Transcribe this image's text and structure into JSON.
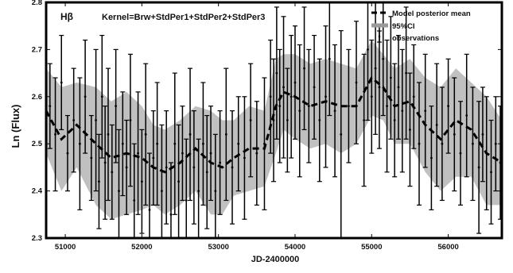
{
  "chart_data": {
    "type": "line",
    "panel_label": "Hβ",
    "kernel_label": "Kernel=Brw+StdPer1+StdPer2+StdPer3",
    "xlabel": "JD-2400000",
    "ylabel": "Ln (Flux)",
    "xlim": [
      50750,
      56700
    ],
    "ylim": [
      2.3,
      2.8
    ],
    "x_ticks": [
      51000,
      52000,
      53000,
      54000,
      55000,
      56000
    ],
    "y_ticks": [
      2.3,
      2.4,
      2.5,
      2.6,
      2.7,
      2.8
    ],
    "legend": {
      "position": "top-right",
      "entries": [
        "Model posterior mean",
        "95%CI",
        "observations"
      ]
    },
    "series": [
      {
        "name": "Model posterior mean",
        "style": "dashed",
        "color": "#000000",
        "x": [
          50750,
          50950,
          51150,
          51400,
          51600,
          51800,
          52000,
          52150,
          52300,
          52500,
          52700,
          52900,
          53050,
          53200,
          53400,
          53600,
          53750,
          53850,
          54000,
          54200,
          54400,
          54600,
          54800,
          55000,
          55150,
          55300,
          55500,
          55700,
          55900,
          56100,
          56300,
          56500,
          56700
        ],
        "y": [
          2.57,
          2.51,
          2.54,
          2.5,
          2.47,
          2.48,
          2.47,
          2.45,
          2.44,
          2.46,
          2.49,
          2.46,
          2.45,
          2.47,
          2.49,
          2.49,
          2.58,
          2.61,
          2.6,
          2.58,
          2.59,
          2.58,
          2.58,
          2.64,
          2.62,
          2.58,
          2.59,
          2.54,
          2.51,
          2.55,
          2.53,
          2.48,
          2.46
        ]
      },
      {
        "name": "95%CI",
        "type": "band",
        "color": "#c0c0c0",
        "x": [
          50750,
          50950,
          51150,
          51400,
          51600,
          51800,
          52000,
          52150,
          52300,
          52500,
          52700,
          52900,
          53050,
          53200,
          53400,
          53600,
          53750,
          53850,
          54000,
          54200,
          54400,
          54600,
          54800,
          55000,
          55150,
          55300,
          55500,
          55700,
          55900,
          56100,
          56300,
          56500,
          56700
        ],
        "lower": [
          2.48,
          2.4,
          2.45,
          2.37,
          2.34,
          2.35,
          2.36,
          2.37,
          2.35,
          2.37,
          2.4,
          2.35,
          2.35,
          2.39,
          2.4,
          2.41,
          2.48,
          2.53,
          2.51,
          2.49,
          2.5,
          2.48,
          2.5,
          2.56,
          2.55,
          2.5,
          2.5,
          2.44,
          2.4,
          2.43,
          2.43,
          2.37,
          2.37
        ],
        "upper": [
          2.66,
          2.62,
          2.63,
          2.62,
          2.59,
          2.61,
          2.58,
          2.54,
          2.53,
          2.55,
          2.58,
          2.57,
          2.55,
          2.55,
          2.58,
          2.57,
          2.68,
          2.69,
          2.69,
          2.67,
          2.68,
          2.67,
          2.66,
          2.72,
          2.69,
          2.66,
          2.68,
          2.64,
          2.62,
          2.66,
          2.63,
          2.6,
          2.55
        ]
      },
      {
        "name": "observations",
        "type": "errorbar",
        "color": "#000000",
        "x": [
          50800,
          50870,
          50950,
          51030,
          51110,
          51190,
          51260,
          51340,
          51400,
          51440,
          51480,
          51520,
          51560,
          51610,
          51660,
          51700,
          51750,
          51800,
          51850,
          51900,
          51950,
          52000,
          52050,
          52100,
          52150,
          52200,
          52260,
          52320,
          52380,
          52430,
          52480,
          52530,
          52580,
          52630,
          52680,
          52740,
          52800,
          52850,
          52900,
          52960,
          53020,
          53100,
          53180,
          53260,
          53340,
          53420,
          53500,
          53600,
          53680,
          53720,
          53760,
          53800,
          53850,
          53900,
          53950,
          54000,
          54060,
          54120,
          54180,
          54250,
          54320,
          54400,
          54450,
          54520,
          54600,
          54700,
          54800,
          54900,
          54950,
          55000,
          55050,
          55100,
          55150,
          55200,
          55250,
          55300,
          55350,
          55400,
          55450,
          55500,
          55550,
          55620,
          55700,
          55780,
          55850,
          55920,
          56000,
          56080,
          56160,
          56240,
          56320,
          56400,
          56450,
          56500,
          56560,
          56620,
          56680
        ],
        "y": [
          2.58,
          2.52,
          2.63,
          2.48,
          2.55,
          2.5,
          2.6,
          2.47,
          2.55,
          2.42,
          2.6,
          2.46,
          2.52,
          2.44,
          2.58,
          2.4,
          2.5,
          2.45,
          2.55,
          2.38,
          2.48,
          2.42,
          2.52,
          2.36,
          2.47,
          2.5,
          2.4,
          2.45,
          2.35,
          2.5,
          2.42,
          2.48,
          2.38,
          2.52,
          2.45,
          2.4,
          2.5,
          2.44,
          2.48,
          2.4,
          2.46,
          2.52,
          2.45,
          2.5,
          2.47,
          2.55,
          2.48,
          2.5,
          2.6,
          2.55,
          2.65,
          2.58,
          2.62,
          2.55,
          2.6,
          2.63,
          2.57,
          2.66,
          2.58,
          2.62,
          2.55,
          2.6,
          2.68,
          2.57,
          2.52,
          2.58,
          2.63,
          2.55,
          2.7,
          2.6,
          2.66,
          2.62,
          2.68,
          2.58,
          2.64,
          2.55,
          2.62,
          2.57,
          2.65,
          2.53,
          2.6,
          2.5,
          2.57,
          2.47,
          2.54,
          2.5,
          2.58,
          2.52,
          2.48,
          2.56,
          2.5,
          2.45,
          2.52,
          2.48,
          2.44,
          2.5,
          2.46
        ],
        "err": [
          0.09,
          0.12,
          0.1,
          0.08,
          0.11,
          0.14,
          0.12,
          0.09,
          0.15,
          0.1,
          0.13,
          0.12,
          0.14,
          0.1,
          0.12,
          0.13,
          0.11,
          0.1,
          0.14,
          0.12,
          0.13,
          0.11,
          0.15,
          0.12,
          0.1,
          0.13,
          0.14,
          0.12,
          0.11,
          0.15,
          0.12,
          0.1,
          0.13,
          0.14,
          0.12,
          0.11,
          0.13,
          0.12,
          0.1,
          0.12,
          0.11,
          0.14,
          0.12,
          0.1,
          0.13,
          0.12,
          0.11,
          0.14,
          0.12,
          0.13,
          0.14,
          0.12,
          0.15,
          0.11,
          0.13,
          0.12,
          0.14,
          0.13,
          0.12,
          0.11,
          0.13,
          0.15,
          0.12,
          0.14,
          0.22,
          0.12,
          0.13,
          0.14,
          0.15,
          0.12,
          0.14,
          0.13,
          0.12,
          0.14,
          0.13,
          0.12,
          0.11,
          0.13,
          0.14,
          0.12,
          0.11,
          0.13,
          0.12,
          0.11,
          0.13,
          0.12,
          0.1,
          0.12,
          0.11,
          0.13,
          0.12,
          0.14,
          0.1,
          0.12,
          0.11,
          0.1,
          0.12
        ]
      }
    ]
  }
}
